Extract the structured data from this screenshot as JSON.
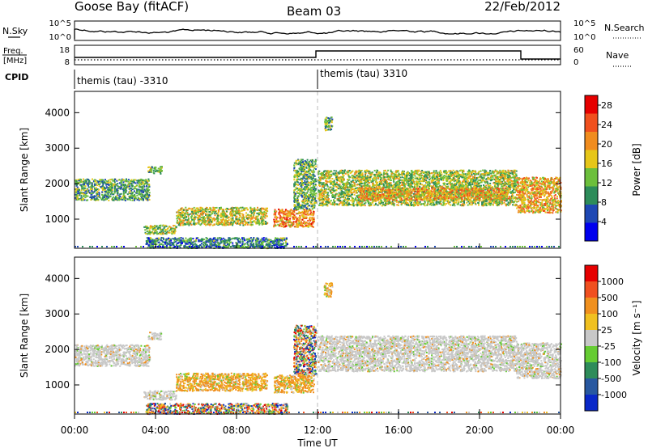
{
  "header": {
    "station": "Goose Bay (fitACF)",
    "beam": "Beam 03",
    "date": "22/Feb/2012"
  },
  "nsky_panel": {
    "left_label": "N.Sky",
    "left_ticks": [
      "10^5",
      "10^0"
    ],
    "right_label": "N.Search",
    "right_ticks": [
      "10^5",
      "10^0"
    ]
  },
  "freq_panel": {
    "left_label_line1": "Freq.",
    "left_label_line2": "[MHz]",
    "left_ticks": [
      "18",
      "8"
    ],
    "right_label": "Nave",
    "right_ticks": [
      "60",
      "0"
    ]
  },
  "cpid": {
    "label": "CPID",
    "segments": [
      {
        "label": "themis (tau) -3310",
        "start_hour": 0,
        "end_hour": 12
      },
      {
        "label": "themis (tau) 3310",
        "start_hour": 12,
        "end_hour": 24
      }
    ]
  },
  "time_axis": {
    "ticks": [
      "00:00",
      "04:00",
      "08:00",
      "12:00",
      "16:00",
      "20:00",
      "00:00"
    ],
    "label": "Time UT"
  },
  "chart_data": [
    {
      "type": "heatmap",
      "name": "power",
      "ylabel": "Slant Range [km]",
      "yticks": [
        "1000",
        "2000",
        "3000",
        "4000"
      ],
      "ylim": [
        180,
        4600
      ],
      "xlim": [
        0,
        24
      ],
      "colorbar": {
        "label": "Power [dB]",
        "ticks": [
          "4",
          "8",
          "12",
          "16",
          "20",
          "24",
          "28"
        ],
        "colors": [
          "#0000ee",
          "#1e48b4",
          "#2d8c5a",
          "#6cbf3c",
          "#e6c619",
          "#f08c1e",
          "#f0501e",
          "#e60000"
        ],
        "range": [
          0,
          30
        ]
      },
      "regions": [
        {
          "t0": 0.0,
          "t1": 3.7,
          "r0": 1550,
          "r1": 2150,
          "level": 10
        },
        {
          "t0": 3.6,
          "t1": 4.3,
          "r0": 2300,
          "r1": 2500,
          "level": 12
        },
        {
          "t0": 3.4,
          "t1": 5.0,
          "r0": 600,
          "r1": 850,
          "level": 14
        },
        {
          "t0": 5.0,
          "t1": 9.5,
          "r0": 850,
          "r1": 1350,
          "level": 16
        },
        {
          "t0": 3.5,
          "t1": 10.5,
          "r0": 200,
          "r1": 500,
          "level": 8
        },
        {
          "t0": 9.8,
          "t1": 11.8,
          "r0": 800,
          "r1": 1300,
          "level": 22
        },
        {
          "t0": 10.8,
          "t1": 11.9,
          "r0": 1300,
          "r1": 2700,
          "level": 12
        },
        {
          "t0": 12.0,
          "t1": 21.8,
          "r0": 1400,
          "r1": 2400,
          "level": 14
        },
        {
          "t0": 14.0,
          "t1": 21.5,
          "r0": 1550,
          "r1": 1900,
          "level": 20
        },
        {
          "t0": 21.8,
          "t1": 24.0,
          "r0": 1200,
          "r1": 2200,
          "level": 20
        },
        {
          "t0": 12.3,
          "t1": 12.7,
          "r0": 3500,
          "r1": 3900,
          "level": 12
        }
      ]
    },
    {
      "type": "heatmap",
      "name": "velocity",
      "ylabel": "Slant Range [km]",
      "yticks": [
        "1000",
        "2000",
        "3000",
        "4000"
      ],
      "ylim": [
        180,
        4600
      ],
      "xlim": [
        0,
        24
      ],
      "colorbar": {
        "label": "Velocity [m s⁻¹]",
        "ticks": [
          "1000",
          "500",
          "100",
          "25",
          "-25",
          "-100",
          "-500",
          "-1000"
        ],
        "colors": [
          "#0a28c8",
          "#2858a0",
          "#2e8c5a",
          "#66cc33",
          "#c8c8c8",
          "#f0c020",
          "#f0901e",
          "#f05020",
          "#e60000"
        ]
      },
      "regions": [
        {
          "t0": 0.0,
          "t1": 3.7,
          "r0": 1550,
          "r1": 2150,
          "kind": "gray"
        },
        {
          "t0": 3.6,
          "t1": 4.3,
          "r0": 2300,
          "r1": 2500,
          "kind": "gray"
        },
        {
          "t0": 3.4,
          "t1": 5.0,
          "r0": 600,
          "r1": 850,
          "kind": "gray"
        },
        {
          "t0": 5.0,
          "t1": 9.5,
          "r0": 850,
          "r1": 1350,
          "kind": "orange"
        },
        {
          "t0": 3.5,
          "t1": 10.5,
          "r0": 200,
          "r1": 500,
          "kind": "mixed"
        },
        {
          "t0": 9.8,
          "t1": 11.8,
          "r0": 800,
          "r1": 1300,
          "kind": "orange"
        },
        {
          "t0": 10.8,
          "t1": 11.9,
          "r0": 1300,
          "r1": 2700,
          "kind": "mixed"
        },
        {
          "t0": 12.0,
          "t1": 21.8,
          "r0": 1400,
          "r1": 2400,
          "kind": "gray"
        },
        {
          "t0": 21.8,
          "t1": 24.0,
          "r0": 1200,
          "r1": 2200,
          "kind": "gray"
        },
        {
          "t0": 12.3,
          "t1": 12.7,
          "r0": 3500,
          "r1": 3900,
          "kind": "orange"
        }
      ]
    }
  ]
}
